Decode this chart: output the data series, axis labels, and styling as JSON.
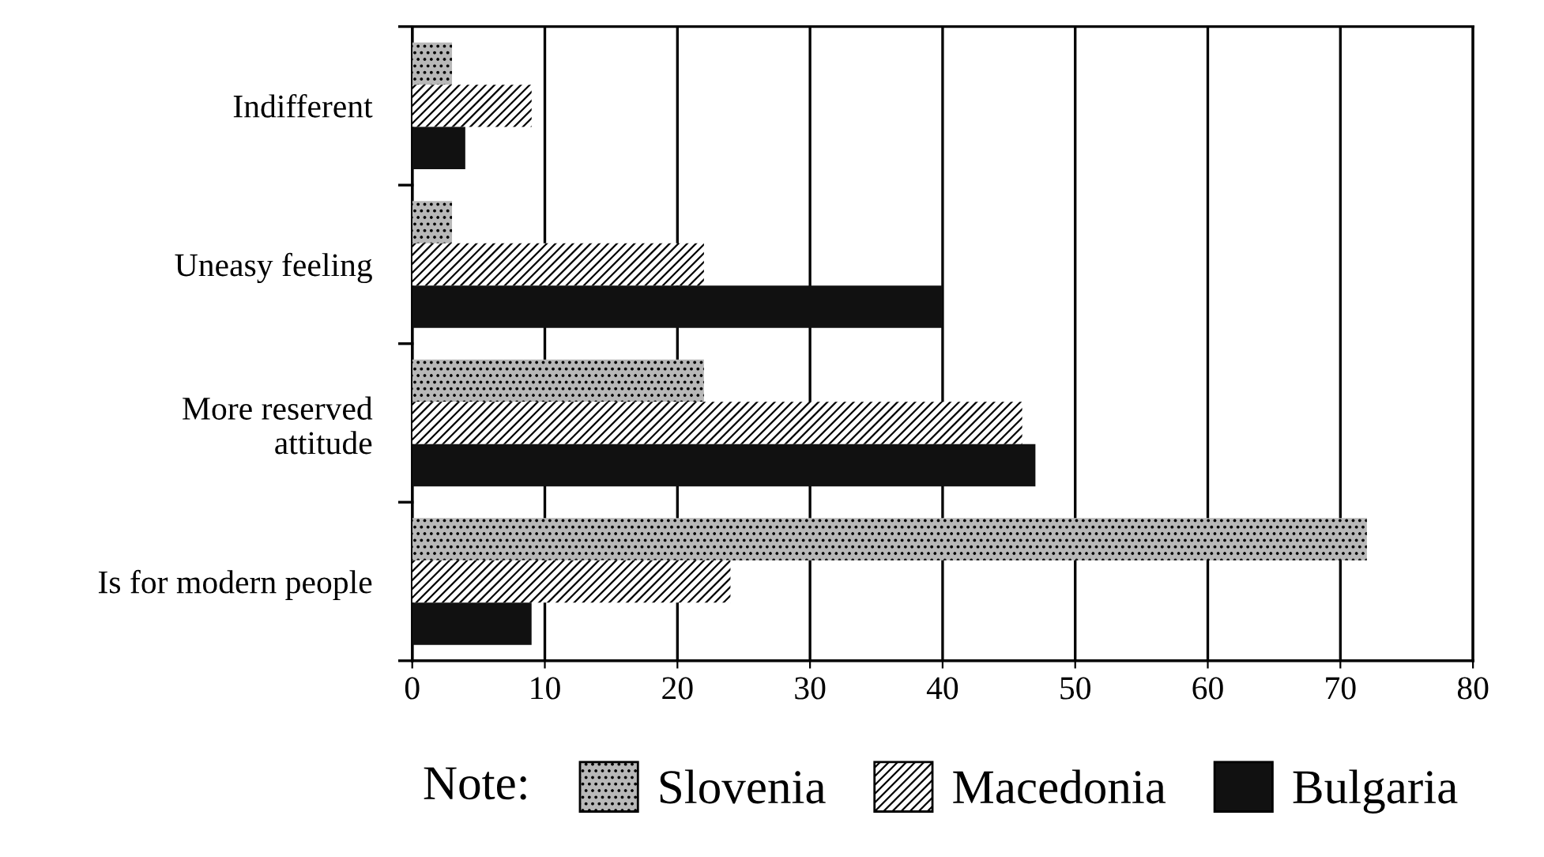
{
  "chart_data": {
    "type": "bar",
    "orientation": "horizontal",
    "categories": [
      "Indifferent",
      "Uneasy feeling",
      "More reserved\nattitude",
      "Is for modern people"
    ],
    "series": [
      {
        "name": "Slovenia",
        "color": "#b8b8b8",
        "values": [
          3,
          3,
          22,
          72
        ]
      },
      {
        "name": "Macedonia",
        "color": "#ffffff",
        "values": [
          9,
          22,
          46,
          24
        ]
      },
      {
        "name": "Bulgaria",
        "color": "#111111",
        "values": [
          4,
          40,
          47,
          9
        ]
      }
    ],
    "xlim": [
      0,
      80
    ],
    "xticks": [
      0,
      10,
      20,
      30,
      40,
      50,
      60,
      70,
      80
    ],
    "grid": "x",
    "legend": "bottom",
    "legend_title": "Note:"
  }
}
